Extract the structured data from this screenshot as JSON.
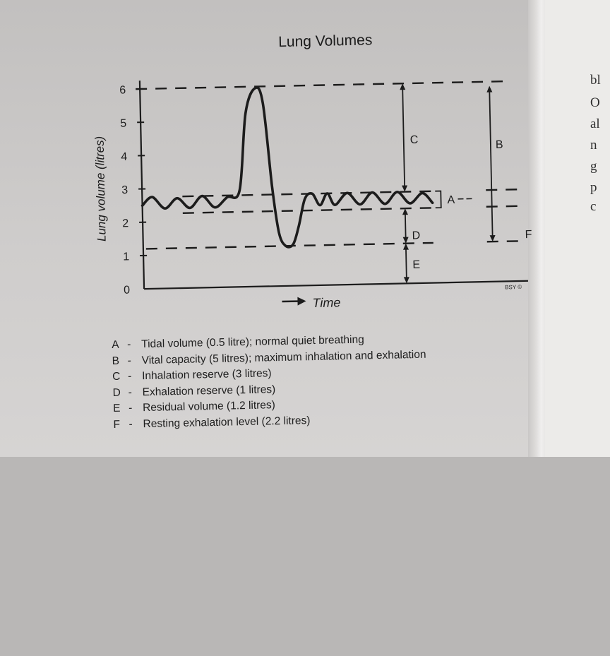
{
  "chart_data": {
    "type": "line",
    "title": "Lung Volumes",
    "xlabel": "Time",
    "ylabel": "Lung volume (litres)",
    "ylim": [
      0,
      6.2
    ],
    "yticks": [
      0,
      1,
      2,
      3,
      4,
      5,
      6
    ],
    "credit": "BSY ©",
    "series": [
      {
        "x": [
          0,
          0.2,
          0.45,
          0.7,
          0.95,
          1.2,
          1.45,
          1.7,
          1.95,
          2.1,
          2.3,
          2.45,
          2.6,
          2.72,
          2.85,
          3.0,
          3.12,
          3.25,
          3.4,
          3.55,
          3.7,
          3.85,
          4.1,
          4.35,
          4.6,
          4.85,
          5.1,
          5.35,
          5.6,
          5.8
        ],
        "y": [
          2.5,
          2.75,
          2.4,
          2.7,
          2.4,
          2.75,
          2.4,
          2.7,
          2.9,
          5.2,
          5.95,
          5.5,
          3.0,
          1.6,
          1.2,
          1.25,
          1.8,
          2.6,
          2.75,
          2.4,
          2.75,
          2.4,
          2.75,
          2.4,
          2.75,
          2.4,
          2.75,
          2.4,
          2.7,
          2.4
        ]
      }
    ],
    "reference_levels": [
      6,
      2.75,
      2.25,
      1.2
    ],
    "annotations": [
      "A",
      "B",
      "C",
      "D",
      "E",
      "F"
    ]
  },
  "legend": [
    {
      "key": "A",
      "text": "Tidal volume (0.5 litre); normal quiet breathing"
    },
    {
      "key": "B",
      "text": "Vital capacity (5 litres); maximum inhalation and exhalation"
    },
    {
      "key": "C",
      "text": "Inhalation reserve (3 litres)"
    },
    {
      "key": "D",
      "text": "Exhalation reserve (1 litres)"
    },
    {
      "key": "E",
      "text": "Residual volume (1.2 litres)"
    },
    {
      "key": "F",
      "text": "Resting exhalation level (2.2 litres)"
    }
  ],
  "legend_separator": "-",
  "right_page_fragments": [
    "bl",
    "O",
    "al",
    "n",
    "g",
    "p",
    "c"
  ],
  "colors": {
    "ink": "#1c1c1c",
    "paper": "#cfcdcc"
  }
}
